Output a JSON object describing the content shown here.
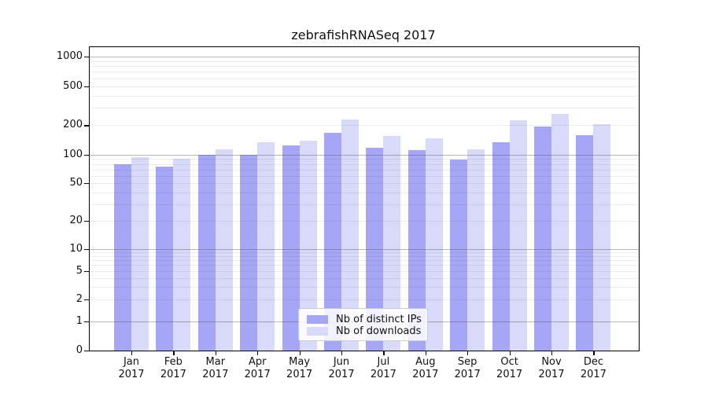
{
  "title": "zebrafishRNASeq 2017",
  "legend": {
    "items": [
      {
        "label": "Nb of distinct IPs",
        "color": "#a6a6f7"
      },
      {
        "label": "Nb of downloads",
        "color": "#d9d9fa"
      }
    ]
  },
  "colors": {
    "bar_distinct_ips": "#a6a6f7",
    "bar_downloads": "#d9d9fa",
    "major_grid": "rgba(70,70,70,0.38)",
    "minor_grid": "rgba(0,0,0,0.07)",
    "axis": "#000000"
  },
  "chart_data": {
    "type": "bar",
    "title": "zebrafishRNASeq 2017",
    "categories": [
      "Jan 2017",
      "Feb 2017",
      "Mar 2017",
      "Apr 2017",
      "May 2017",
      "Jun 2017",
      "Jul 2017",
      "Aug 2017",
      "Sep 2017",
      "Oct 2017",
      "Nov 2017",
      "Dec 2017"
    ],
    "series": [
      {
        "name": "Nb of distinct IPs",
        "color": "#a6a6f7",
        "values": [
          80,
          75,
          100,
          100,
          124,
          168,
          119,
          111,
          90,
          134,
          193,
          160
        ]
      },
      {
        "name": "Nb of downloads",
        "color": "#d9d9fa",
        "values": [
          95,
          91,
          114,
          134,
          139,
          230,
          157,
          148,
          114,
          225,
          260,
          205
        ]
      }
    ],
    "xlabel": "",
    "ylabel": "",
    "yscale": "symlog",
    "yticks": [
      0,
      1,
      2,
      5,
      10,
      20,
      50,
      100,
      200,
      500,
      1000
    ],
    "ylim": [
      0,
      1000
    ],
    "grid": true,
    "grid_over_bars": true,
    "legend_position": "inside-lower-center"
  }
}
